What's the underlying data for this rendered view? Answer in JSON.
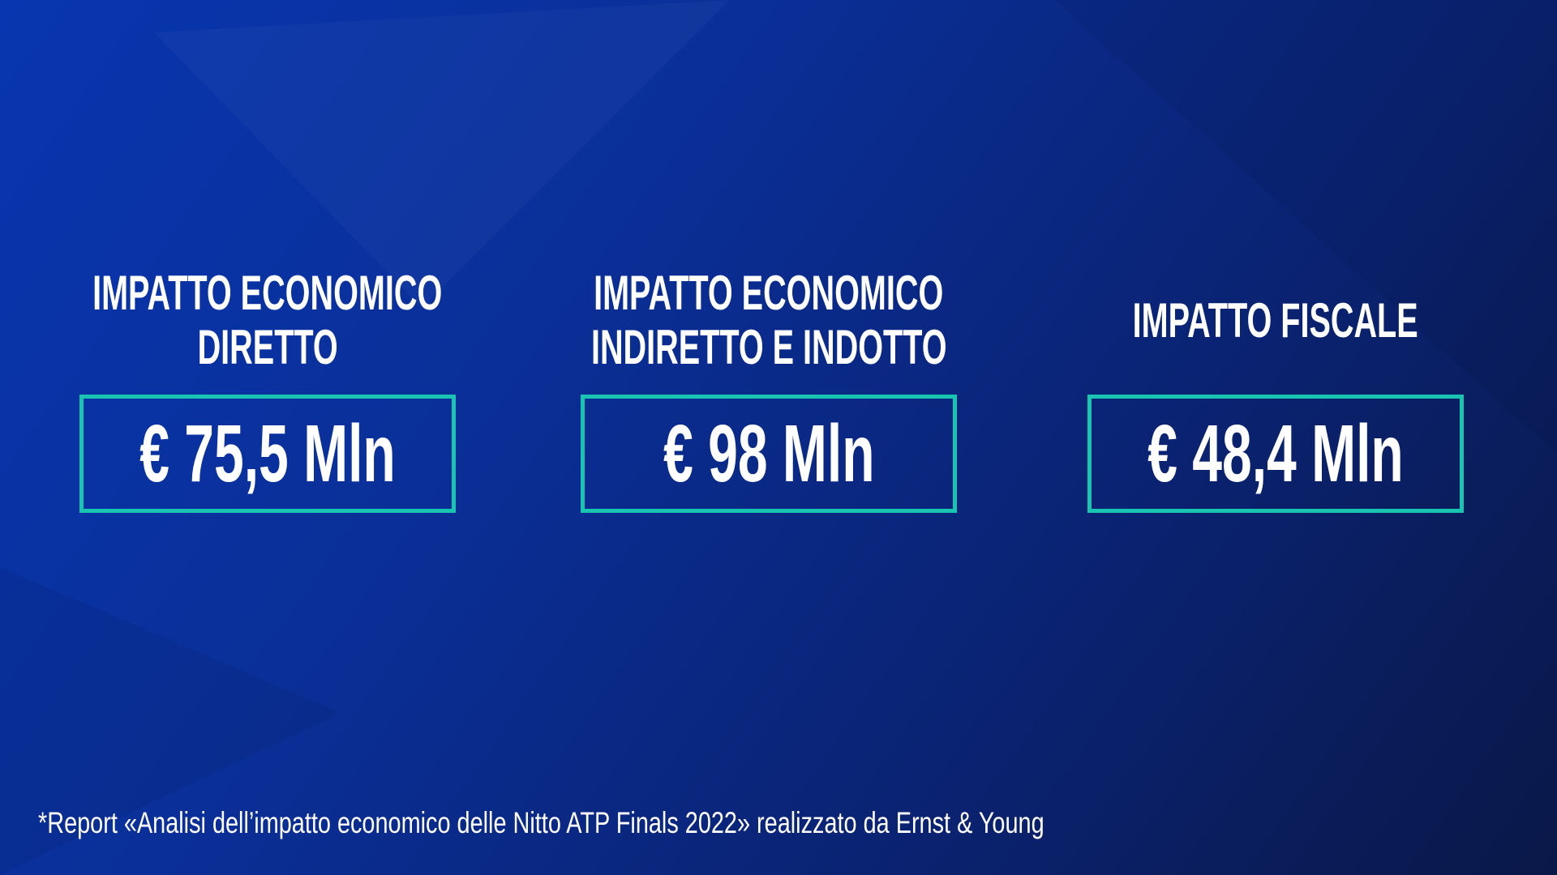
{
  "cards": [
    {
      "label_lines": [
        "IMPATTO ECONOMICO",
        "DIRETTO"
      ],
      "value": "€ 75,5 Mln"
    },
    {
      "label_lines": [
        "IMPATTO ECONOMICO",
        "INDIRETTO E INDOTTO"
      ],
      "value": "€ 98 Mln"
    },
    {
      "label_lines": [
        "IMPATTO FISCALE"
      ],
      "value": "€ 48,4 Mln"
    }
  ],
  "footnote": "*Report «Analisi dell’impatto economico delle Nitto ATP Finals 2022» realizzato da Ernst & Young"
}
